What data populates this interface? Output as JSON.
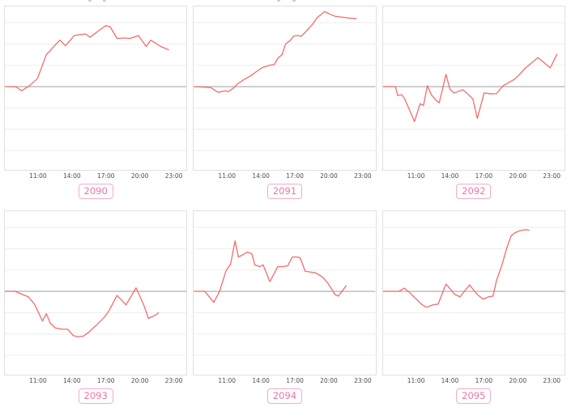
{
  "palette": {
    "line_color": "#f56a6a",
    "zero_line_color": "#a8a8a8",
    "grid_color": "#ededed",
    "panel_border_color": "#e0e0e0",
    "tick_text_color": "#4d4d4d",
    "chip_text_color": "#ee76a3",
    "chip_border_color": "#f6adc6"
  },
  "chart_axis": {
    "type_note": "shared axis for all six sparkline panels",
    "xlim": [
      8.0,
      24.2
    ],
    "ylim": [
      -3.91,
      3.76
    ],
    "xticks": {
      "hours": [
        11,
        14,
        17,
        20,
        23
      ],
      "labels": [
        "11:00",
        "14:00",
        "17:00",
        "20:00",
        "23:00"
      ]
    },
    "grid": "horizontal",
    "grid_values": [
      3,
      2,
      1,
      -1,
      -2,
      -3
    ],
    "zero_line": true
  },
  "chart_data": [
    {
      "type": "line",
      "label": "2090",
      "x": [
        7.95,
        9.0,
        9.5,
        10.2,
        10.9,
        11.35,
        11.7,
        12.0,
        12.35,
        12.9,
        13.4,
        14.2,
        14.7,
        15.2,
        15.6,
        16.3,
        17.0,
        17.4,
        18.0,
        18.7,
        19.2,
        19.9,
        20.6,
        21.0,
        21.9,
        22.6
      ],
      "y": [
        0,
        -0.02,
        -0.19,
        0.04,
        0.37,
        1.0,
        1.5,
        1.66,
        1.88,
        2.18,
        1.92,
        2.4,
        2.44,
        2.47,
        2.32,
        2.6,
        2.86,
        2.8,
        2.26,
        2.28,
        2.26,
        2.4,
        1.88,
        2.18,
        1.88,
        1.73
      ]
    },
    {
      "type": "line",
      "label": "2091",
      "x": [
        8.05,
        9.5,
        10.2,
        10.8,
        11.1,
        11.6,
        11.95,
        12.5,
        13.1,
        13.7,
        14.15,
        14.7,
        15.2,
        15.5,
        15.9,
        16.2,
        16.6,
        16.95,
        17.3,
        17.6,
        18.1,
        18.6,
        19.0,
        19.7,
        20.1,
        20.6,
        21.2,
        21.8,
        22.5
      ],
      "y": [
        0,
        -0.04,
        -0.27,
        -0.2,
        -0.24,
        -0.05,
        0.14,
        0.33,
        0.51,
        0.74,
        0.9,
        0.99,
        1.04,
        1.32,
        1.51,
        2.0,
        2.16,
        2.38,
        2.4,
        2.36,
        2.63,
        2.92,
        3.23,
        3.52,
        3.41,
        3.3,
        3.26,
        3.22,
        3.19
      ]
    },
    {
      "type": "line",
      "label": "2092",
      "x": [
        7.85,
        9.1,
        9.3,
        9.65,
        9.9,
        10.8,
        11.3,
        11.6,
        11.95,
        12.3,
        12.8,
        13.0,
        13.6,
        13.95,
        14.3,
        14.8,
        15.1,
        15.7,
        16.0,
        16.4,
        17.0,
        17.6,
        18.1,
        18.7,
        19.2,
        19.7,
        20.1,
        20.6,
        21.8,
        22.9,
        23.5
      ],
      "y": [
        0,
        0,
        -0.42,
        -0.38,
        -0.55,
        -1.64,
        -0.8,
        -0.89,
        0.04,
        -0.39,
        -0.68,
        -0.76,
        0.57,
        -0.11,
        -0.3,
        -0.21,
        -0.14,
        -0.43,
        -0.58,
        -1.49,
        -0.3,
        -0.34,
        -0.33,
        0.04,
        0.19,
        0.34,
        0.53,
        0.83,
        1.36,
        0.88,
        1.52
      ]
    },
    {
      "type": "line",
      "label": "2093",
      "x": [
        7.9,
        8.9,
        9.6,
        10.1,
        10.65,
        11.35,
        11.7,
        12.05,
        12.5,
        13.1,
        13.6,
        14.1,
        14.5,
        15.0,
        15.5,
        16.2,
        16.9,
        17.3,
        18.0,
        18.8,
        19.7,
        20.4,
        20.8,
        21.4,
        21.7
      ],
      "y": [
        0,
        0,
        -0.15,
        -0.26,
        -0.61,
        -1.39,
        -1.05,
        -1.5,
        -1.72,
        -1.78,
        -1.78,
        -2.08,
        -2.13,
        -2.1,
        -1.91,
        -1.57,
        -1.2,
        -0.9,
        -0.19,
        -0.64,
        0.16,
        -0.67,
        -1.27,
        -1.12,
        -1.01
      ]
    },
    {
      "type": "line",
      "label": "2094",
      "x": [
        8.1,
        9.0,
        9.8,
        10.3,
        10.9,
        11.3,
        11.7,
        12.0,
        12.3,
        12.8,
        13.2,
        13.45,
        13.9,
        14.2,
        14.8,
        15.5,
        16.0,
        16.4,
        16.8,
        17.2,
        17.5,
        17.95,
        18.5,
        18.9,
        19.5,
        20.0,
        20.6,
        20.9,
        21.6
      ],
      "y": [
        0,
        0,
        -0.52,
        -0.03,
        0.97,
        1.27,
        2.36,
        1.61,
        1.69,
        1.84,
        1.76,
        1.24,
        1.16,
        1.24,
        0.45,
        1.16,
        1.16,
        1.2,
        1.61,
        1.61,
        1.57,
        0.94,
        0.9,
        0.86,
        0.67,
        0.37,
        -0.15,
        -0.22,
        0.26
      ]
    },
    {
      "type": "line",
      "label": "2095",
      "x": [
        7.85,
        9.4,
        9.9,
        10.3,
        10.9,
        11.5,
        11.9,
        12.4,
        12.9,
        13.6,
        14.4,
        14.85,
        15.7,
        16.4,
        16.9,
        17.4,
        17.8,
        18.1,
        18.6,
        19.0,
        19.4,
        19.7,
        20.2,
        20.7,
        21.0
      ],
      "y": [
        0,
        0,
        0.15,
        -0.03,
        -0.34,
        -0.64,
        -0.75,
        -0.64,
        -0.6,
        0.34,
        -0.15,
        -0.26,
        0.3,
        -0.15,
        -0.37,
        -0.26,
        -0.22,
        0.49,
        1.24,
        1.99,
        2.59,
        2.73,
        2.85,
        2.89,
        2.87
      ]
    }
  ]
}
